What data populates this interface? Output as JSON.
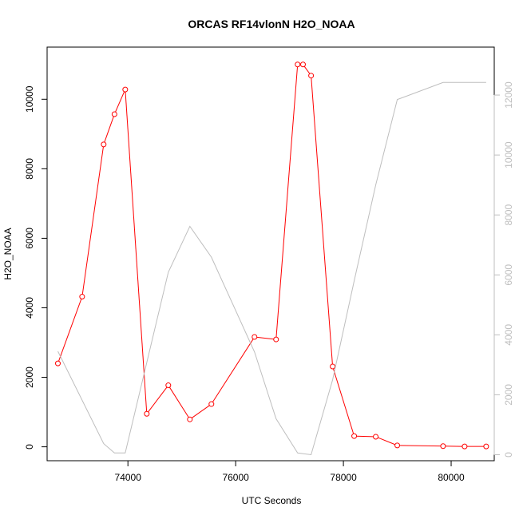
{
  "chart_data": {
    "type": "line",
    "title": "ORCAS RF14vlonN H2O_NOAA",
    "xlabel": "UTC Seconds",
    "ylabel": "H2O_NOAA",
    "xlim": [
      72500,
      80800
    ],
    "ylim": [
      -400,
      11500
    ],
    "y2lim": [
      -200,
      13600
    ],
    "x_ticks": [
      74000,
      76000,
      78000,
      80000
    ],
    "y_ticks": [
      0,
      2000,
      4000,
      6000,
      8000,
      10000
    ],
    "y2_ticks": [
      0,
      2000,
      4000,
      6000,
      8000,
      10000,
      12000
    ],
    "series": [
      {
        "axis": "left",
        "color": "#ff0000",
        "marker": "circle",
        "x": [
          72700,
          73150,
          73550,
          73750,
          73950,
          74350,
          74750,
          75150,
          75550,
          76350,
          76750,
          77150,
          77250,
          77400,
          77800,
          78200,
          78600,
          79000,
          79850,
          80250,
          80650
        ],
        "y": [
          2400,
          4320,
          8700,
          9570,
          10280,
          950,
          1770,
          790,
          1230,
          3160,
          3090,
          11000,
          11000,
          10680,
          2310,
          310,
          290,
          40,
          20,
          10,
          10
        ]
      },
      {
        "axis": "right",
        "color": "#bebebe",
        "marker": "none",
        "x": [
          72700,
          73550,
          73750,
          73950,
          74750,
          75150,
          75550,
          76350,
          76750,
          77150,
          77400,
          77800,
          78200,
          78600,
          79000,
          79850,
          80650
        ],
        "y": [
          3450,
          370,
          60,
          60,
          6090,
          7620,
          6590,
          3430,
          1200,
          60,
          0,
          2500,
          5800,
          9000,
          11850,
          12420,
          12420
        ]
      }
    ]
  }
}
